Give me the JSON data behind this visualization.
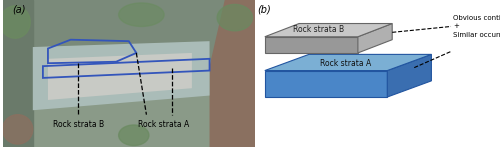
{
  "fig_width": 5.0,
  "fig_height": 1.47,
  "dpi": 100,
  "label_a": "(a)",
  "label_b": "(b)",
  "rock_strata_B_label_photo": "Rock strata B",
  "rock_strata_A_label_photo": "Rock strata A",
  "rock_strata_B_label_3d": "Rock strata B",
  "rock_strata_A_label_3d": "Rock strata A",
  "annotation1": "Obvious continuity",
  "annotation2": "+",
  "annotation3": "Similar occurrence",
  "outline_color": "#3355bb",
  "bg_color": "#ffffff",
  "block_A_top": "#7bafd4",
  "block_A_front": "#4a86c8",
  "block_A_side": "#3a6eb0",
  "block_B_top": "#c8c8c8",
  "block_B_front": "#989898",
  "block_B_side": "#b0b0b0",
  "photo_colors": {
    "bg1": "#8a9a88",
    "bg2": "#9aacaa",
    "bg3": "#b0bab5",
    "rock1": "#7a8a7a",
    "rock2": "#6a7a6a",
    "rock3": "#aabcb8",
    "rock4": "#c8cac5",
    "brown1": "#8a7060",
    "green1": "#6a8a60"
  }
}
